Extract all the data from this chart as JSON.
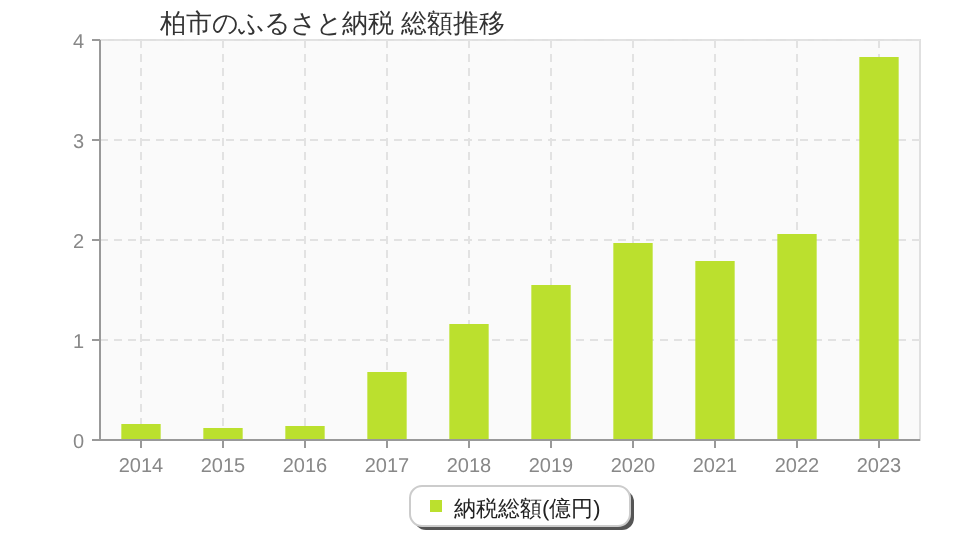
{
  "chart_data": {
    "type": "bar",
    "title": "柏市のふるさと納税  総額推移",
    "categories": [
      "2014",
      "2015",
      "2016",
      "2017",
      "2018",
      "2019",
      "2020",
      "2021",
      "2022",
      "2023"
    ],
    "series": [
      {
        "name": "納税総額(億円)",
        "color": "#bbe02e",
        "values": [
          0.16,
          0.12,
          0.14,
          0.68,
          1.16,
          1.55,
          1.97,
          1.79,
          2.06,
          3.83
        ]
      }
    ],
    "ylim": [
      0,
      4
    ],
    "yticks": [
      0,
      1,
      2,
      3,
      4
    ],
    "grid": true,
    "legend": "bottom"
  }
}
